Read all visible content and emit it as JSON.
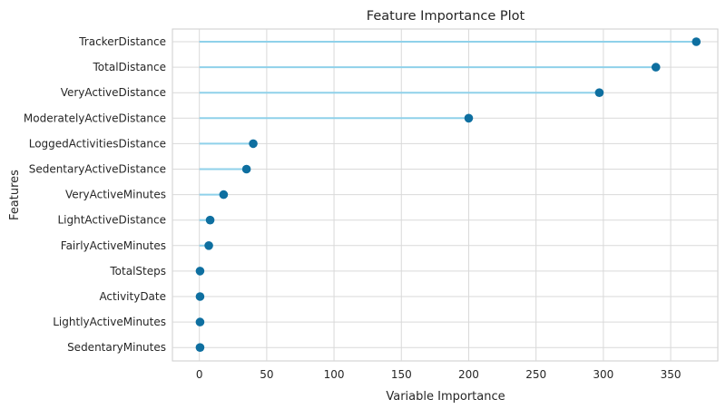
{
  "chart_data": {
    "type": "lollipop",
    "title": "Feature Importance Plot",
    "xlabel": "Variable Importance",
    "ylabel": "Features",
    "xlim": [
      -20,
      385
    ],
    "xticks": [
      0,
      50,
      100,
      150,
      200,
      250,
      300,
      350
    ],
    "grid": true,
    "categories": [
      "TrackerDistance",
      "TotalDistance",
      "VeryActiveDistance",
      "ModeratelyActiveDistance",
      "LoggedActivitiesDistance",
      "SedentaryActiveDistance",
      "VeryActiveMinutes",
      "LightActiveDistance",
      "FairlyActiveMinutes",
      "TotalSteps",
      "ActivityDate",
      "LightlyActiveMinutes",
      "SedentaryMinutes"
    ],
    "values": [
      369,
      339,
      297,
      200,
      40,
      35,
      18,
      8,
      7,
      0.5,
      0.5,
      0.5,
      0.5
    ],
    "colors": {
      "stem": "#8fd1ea",
      "marker": "#0e6fa0",
      "plot_bg": "#ffffff",
      "grid": "#d9d9d9",
      "frame": "#cccccc"
    }
  }
}
